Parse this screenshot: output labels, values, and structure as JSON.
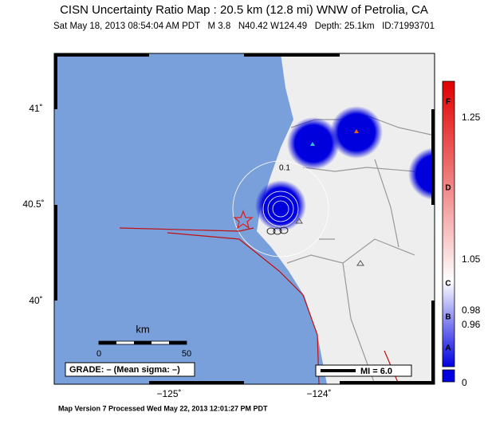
{
  "header": {
    "title": "CISN Uncertainty Ratio Map : 20.5 km (12.8 mi) WNW of Petrolia, CA",
    "subtitle": "Sat May 18, 2013 08:54:04 AM PDT   M 3.8   N40.42 W124.49   Depth: 25.1km   ID:71993701"
  },
  "map": {
    "lat_labels": [
      "41˚",
      "40.5˚",
      "40˚"
    ],
    "lon_labels": [
      "−125˚",
      "−124˚"
    ],
    "contour_label": "0.1"
  },
  "scale": {
    "unit": "km",
    "start": "0",
    "end": "50"
  },
  "grade_box": "GRADE: – (Mean sigma: –)",
  "mi_legend": "MI = 6.0",
  "colorbar": {
    "grades": [
      "F",
      "D",
      "C",
      "B",
      "A"
    ],
    "values": [
      "1.25",
      "1.05",
      "0.98",
      "0.96",
      "0"
    ]
  },
  "footer": "Map Version 7 Processed Wed May 22, 2013 12:01:27 PM PDT"
}
